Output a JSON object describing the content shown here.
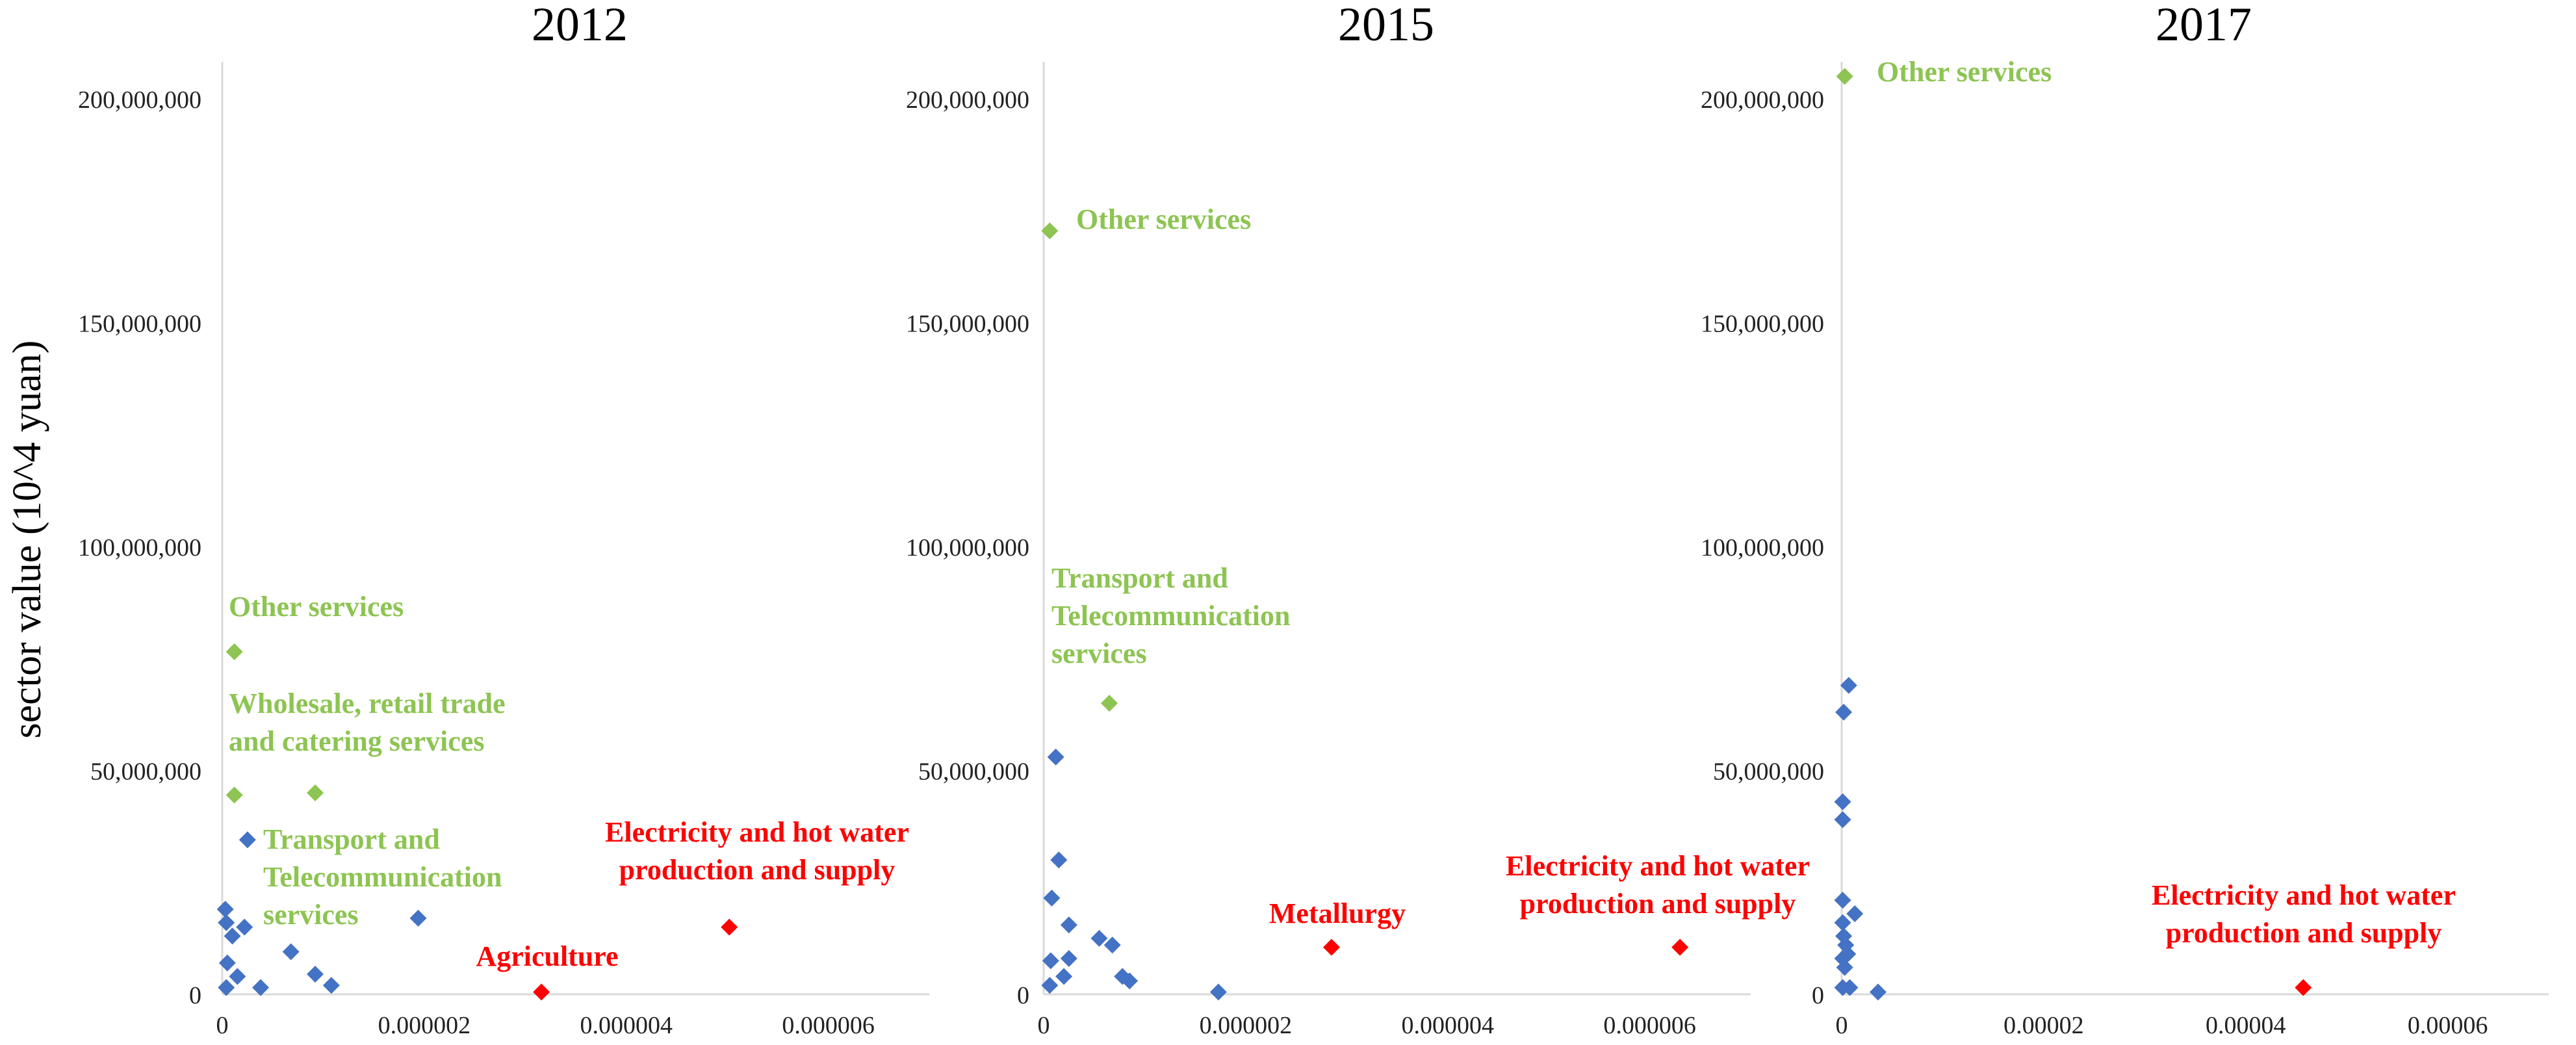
{
  "chart_data": {
    "type": "scatter",
    "ylabel": "sector value (10^4 yuan)",
    "colors": {
      "normal": "#4472C4",
      "green": "#8DC452",
      "red": "#FF0000",
      "axis": "#D9D9D9"
    },
    "panels": [
      {
        "title": "2012",
        "xlim": [
          0,
          7e-06
        ],
        "ylim": [
          0,
          210000000
        ],
        "xticks": [
          0,
          2e-06,
          4e-06,
          6e-06
        ],
        "xtick_labels": [
          "0",
          "0.000002",
          "0.000004",
          "0.000006"
        ],
        "yticks": [
          0,
          50000000,
          100000000,
          150000000,
          200000000
        ],
        "ytick_labels": [
          "0",
          "50,000,000",
          "100,000,000",
          "150,000,000",
          "200,000,000"
        ],
        "points": [
          {
            "x": 3e-08,
            "y": 19000000,
            "c": "normal"
          },
          {
            "x": 4e-08,
            "y": 16000000,
            "c": "normal"
          },
          {
            "x": 1e-07,
            "y": 13000000,
            "c": "normal"
          },
          {
            "x": 2.2e-07,
            "y": 15000000,
            "c": "normal"
          },
          {
            "x": 5e-08,
            "y": 7000000,
            "c": "normal"
          },
          {
            "x": 1.5e-07,
            "y": 4000000,
            "c": "normal"
          },
          {
            "x": 4e-08,
            "y": 1500000,
            "c": "normal"
          },
          {
            "x": 3.8e-07,
            "y": 1500000,
            "c": "normal"
          },
          {
            "x": 6.8e-07,
            "y": 9500000,
            "c": "normal"
          },
          {
            "x": 9.2e-07,
            "y": 4500000,
            "c": "normal"
          },
          {
            "x": 1.08e-06,
            "y": 2000000,
            "c": "normal"
          },
          {
            "x": 2.5e-07,
            "y": 34500000,
            "c": "normal"
          },
          {
            "x": 1.94e-06,
            "y": 17000000,
            "c": "normal"
          },
          {
            "x": 1.2e-07,
            "y": 76500000,
            "c": "green"
          },
          {
            "x": 1.2e-07,
            "y": 44500000,
            "c": "green"
          },
          {
            "x": 9.2e-07,
            "y": 45000000,
            "c": "green"
          },
          {
            "x": 3.16e-06,
            "y": 500000,
            "c": "red"
          },
          {
            "x": 5.02e-06,
            "y": 15000000,
            "c": "red"
          }
        ],
        "annotations": [
          {
            "lines": [
              "Other services"
            ],
            "color": "green"
          },
          {
            "lines": [
              "Wholesale, retail trade",
              "and catering services"
            ],
            "color": "green"
          },
          {
            "lines": [
              "Transport and",
              "Telecommunication",
              "services"
            ],
            "color": "green"
          },
          {
            "lines": [
              "Electricity and hot water",
              "production and supply"
            ],
            "color": "red"
          },
          {
            "lines": [
              "Agriculture"
            ],
            "color": "red"
          }
        ]
      },
      {
        "title": "2015",
        "xlim": [
          0,
          7e-06
        ],
        "ylim": [
          0,
          210000000
        ],
        "xticks": [
          0,
          2e-06,
          4e-06,
          6e-06
        ],
        "xtick_labels": [
          "0",
          "0.000002",
          "0.000004",
          "0.000006"
        ],
        "yticks": [
          0,
          50000000,
          100000000,
          150000000,
          200000000
        ],
        "ytick_labels": [
          "0",
          "50,000,000",
          "100,000,000",
          "150,000,000",
          "200,000,000"
        ],
        "points": [
          {
            "x": 1.2e-07,
            "y": 53000000,
            "c": "normal"
          },
          {
            "x": 1.5e-07,
            "y": 30000000,
            "c": "normal"
          },
          {
            "x": 8e-08,
            "y": 21500000,
            "c": "normal"
          },
          {
            "x": 2.5e-07,
            "y": 15500000,
            "c": "normal"
          },
          {
            "x": 5.5e-07,
            "y": 12500000,
            "c": "normal"
          },
          {
            "x": 6.8e-07,
            "y": 11000000,
            "c": "normal"
          },
          {
            "x": 7e-08,
            "y": 7500000,
            "c": "normal"
          },
          {
            "x": 2.5e-07,
            "y": 8000000,
            "c": "normal"
          },
          {
            "x": 7.8e-07,
            "y": 4000000,
            "c": "normal"
          },
          {
            "x": 8.5e-07,
            "y": 3000000,
            "c": "normal"
          },
          {
            "x": 2e-07,
            "y": 4000000,
            "c": "normal"
          },
          {
            "x": 6e-08,
            "y": 2000000,
            "c": "normal"
          },
          {
            "x": 1.73e-06,
            "y": 500000,
            "c": "normal"
          },
          {
            "x": 6e-08,
            "y": 170500000,
            "c": "green"
          },
          {
            "x": 6.5e-07,
            "y": 65000000,
            "c": "green"
          },
          {
            "x": 2.85e-06,
            "y": 10500000,
            "c": "red"
          },
          {
            "x": 6.3e-06,
            "y": 10500000,
            "c": "red"
          }
        ],
        "annotations": [
          {
            "lines": [
              "Other services"
            ],
            "color": "green"
          },
          {
            "lines": [
              "Transport and",
              "Telecommunication",
              "services"
            ],
            "color": "green"
          },
          {
            "lines": [
              "Metallurgy"
            ],
            "color": "red"
          },
          {
            "lines": [
              "Electricity and hot water",
              "production and supply"
            ],
            "color": "red"
          }
        ]
      },
      {
        "title": "2017",
        "xlim": [
          0,
          7e-05
        ],
        "ylim": [
          0,
          210000000
        ],
        "xticks": [
          0,
          2e-05,
          4e-05,
          6e-05
        ],
        "xtick_labels": [
          "0",
          "0.00002",
          "0.00004",
          "0.00006"
        ],
        "yticks": [
          0,
          50000000,
          100000000,
          150000000,
          200000000
        ],
        "ytick_labels": [
          "0",
          "50,000,000",
          "100,000,000",
          "150,000,000",
          "200,000,000"
        ],
        "points": [
          {
            "x": 7e-07,
            "y": 69000000,
            "c": "normal"
          },
          {
            "x": 2e-07,
            "y": 63000000,
            "c": "normal"
          },
          {
            "x": 1e-07,
            "y": 43000000,
            "c": "normal"
          },
          {
            "x": 1e-07,
            "y": 39000000,
            "c": "normal"
          },
          {
            "x": 1e-07,
            "y": 21000000,
            "c": "normal"
          },
          {
            "x": 1.3e-06,
            "y": 18000000,
            "c": "normal"
          },
          {
            "x": 1e-07,
            "y": 16000000,
            "c": "normal"
          },
          {
            "x": 2e-07,
            "y": 13000000,
            "c": "normal"
          },
          {
            "x": 4e-07,
            "y": 11000000,
            "c": "normal"
          },
          {
            "x": 6e-07,
            "y": 9000000,
            "c": "normal"
          },
          {
            "x": 1e-07,
            "y": 8000000,
            "c": "normal"
          },
          {
            "x": 3e-07,
            "y": 6000000,
            "c": "normal"
          },
          {
            "x": 1e-07,
            "y": 1500000,
            "c": "normal"
          },
          {
            "x": 8e-07,
            "y": 1500000,
            "c": "normal"
          },
          {
            "x": 3.6e-06,
            "y": 500000,
            "c": "normal"
          },
          {
            "x": 3e-07,
            "y": 205000000,
            "c": "green"
          },
          {
            "x": 4.57e-05,
            "y": 1500000,
            "c": "red"
          }
        ],
        "annotations": [
          {
            "lines": [
              "Other services"
            ],
            "color": "green"
          },
          {
            "lines": [
              "Electricity and hot water",
              "production and supply"
            ],
            "color": "red"
          }
        ]
      }
    ]
  }
}
